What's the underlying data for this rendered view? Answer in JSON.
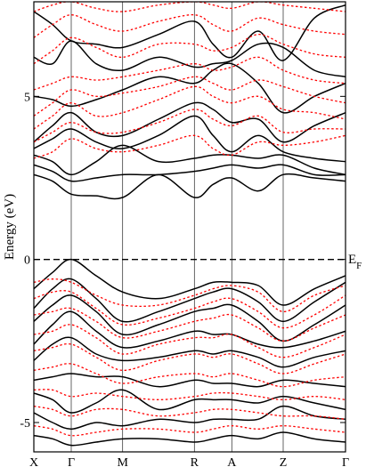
{
  "chart_data": {
    "type": "line",
    "title": "",
    "xlabel": "",
    "ylabel": "Energy (eV)",
    "ylim": [
      -5.9,
      7.9
    ],
    "yticks": [
      -5,
      0,
      5
    ],
    "kpoints": [
      {
        "label": "X",
        "x": 0.0
      },
      {
        "label": "Γ",
        "x": 0.12
      },
      {
        "label": "M",
        "x": 0.285
      },
      {
        "label": "R",
        "x": 0.515
      },
      {
        "label": "A",
        "x": 0.635
      },
      {
        "label": "Z",
        "x": 0.8
      },
      {
        "label": "Γ",
        "x": 1.0
      }
    ],
    "fermi": {
      "value": 0,
      "label_main": "E",
      "label_sub": "F"
    },
    "colors": {
      "solid": "#000000",
      "dashed": "#ff0000"
    },
    "series": [
      {
        "style": "solid",
        "x": [
          0,
          0.06,
          0.12,
          0.2,
          0.285,
          0.4,
          0.515,
          0.575,
          0.635,
          0.72,
          0.8,
          0.9,
          1.0
        ],
        "y": [
          2.6,
          2.4,
          2.0,
          1.95,
          1.9,
          2.6,
          1.9,
          2.3,
          2.5,
          2.1,
          2.6,
          2.5,
          2.4
        ]
      },
      {
        "style": "solid",
        "x": [
          0,
          0.06,
          0.12,
          0.2,
          0.285,
          0.4,
          0.515,
          0.575,
          0.635,
          0.72,
          0.8,
          0.9,
          1.0
        ],
        "y": [
          2.9,
          2.7,
          2.4,
          2.5,
          2.6,
          2.6,
          2.7,
          2.8,
          2.9,
          2.8,
          2.9,
          2.6,
          2.6
        ]
      },
      {
        "style": "solid",
        "x": [
          0,
          0.06,
          0.12,
          0.2,
          0.285,
          0.4,
          0.515,
          0.575,
          0.635,
          0.72,
          0.8,
          0.9,
          1.0
        ],
        "y": [
          3.2,
          3.0,
          2.6,
          3.0,
          3.5,
          3.0,
          3.1,
          3.2,
          3.2,
          3.1,
          3.2,
          2.8,
          2.6
        ]
      },
      {
        "style": "solid",
        "x": [
          0,
          0.06,
          0.12,
          0.2,
          0.285,
          0.4,
          0.515,
          0.575,
          0.635,
          0.72,
          0.8,
          0.9,
          1.0
        ],
        "y": [
          3.4,
          3.7,
          4.0,
          3.6,
          3.4,
          3.8,
          4.4,
          3.8,
          3.3,
          3.8,
          3.3,
          3.1,
          3.0
        ]
      },
      {
        "style": "solid",
        "x": [
          0,
          0.06,
          0.12,
          0.2,
          0.285,
          0.4,
          0.515,
          0.575,
          0.635,
          0.72,
          0.8,
          0.9,
          1.0
        ],
        "y": [
          3.6,
          4.1,
          4.5,
          3.9,
          3.8,
          4.3,
          4.8,
          4.6,
          4.2,
          4.3,
          3.6,
          4.1,
          4.5
        ]
      },
      {
        "style": "solid",
        "x": [
          0,
          0.06,
          0.12,
          0.2,
          0.285,
          0.4,
          0.515,
          0.575,
          0.635,
          0.72,
          0.8,
          0.9,
          1.0
        ],
        "y": [
          5.0,
          4.9,
          4.7,
          4.9,
          5.2,
          5.6,
          5.4,
          5.8,
          6.0,
          5.4,
          4.5,
          5.0,
          5.4
        ]
      },
      {
        "style": "solid",
        "x": [
          0,
          0.06,
          0.12,
          0.2,
          0.285,
          0.4,
          0.515,
          0.575,
          0.635,
          0.72,
          0.8,
          0.9,
          1.0
        ],
        "y": [
          6.2,
          6.0,
          6.7,
          6.0,
          5.8,
          6.2,
          5.9,
          6.0,
          6.1,
          6.6,
          6.5,
          5.8,
          5.6
        ]
      },
      {
        "style": "solid",
        "x": [
          0,
          0.06,
          0.12,
          0.2,
          0.285,
          0.4,
          0.515,
          0.575,
          0.635,
          0.72,
          0.8,
          0.9,
          1.0
        ],
        "y": [
          7.6,
          7.2,
          6.7,
          6.6,
          6.5,
          6.9,
          7.3,
          6.6,
          6.2,
          7.0,
          6.1,
          7.4,
          7.8
        ]
      },
      {
        "style": "dashed",
        "x": [
          0,
          0.06,
          0.12,
          0.2,
          0.285,
          0.4,
          0.515,
          0.575,
          0.635,
          0.72,
          0.8,
          0.9,
          1.0
        ],
        "y": [
          3.1,
          3.3,
          3.7,
          3.4,
          3.3,
          3.5,
          3.8,
          3.4,
          3.2,
          3.6,
          3.5,
          3.6,
          3.8
        ]
      },
      {
        "style": "dashed",
        "x": [
          0,
          0.06,
          0.12,
          0.2,
          0.285,
          0.4,
          0.515,
          0.575,
          0.635,
          0.72,
          0.8,
          0.9,
          1.0
        ],
        "y": [
          3.6,
          3.9,
          4.2,
          3.9,
          3.9,
          4.2,
          4.6,
          4.3,
          4.1,
          4.4,
          3.9,
          4.0,
          4.0
        ]
      },
      {
        "style": "dashed",
        "x": [
          0,
          0.06,
          0.12,
          0.2,
          0.285,
          0.4,
          0.515,
          0.575,
          0.635,
          0.72,
          0.8,
          0.9,
          1.0
        ],
        "y": [
          4.0,
          4.4,
          4.8,
          4.4,
          4.5,
          4.9,
          5.3,
          5.0,
          4.8,
          5.0,
          4.6,
          4.5,
          4.3
        ]
      },
      {
        "style": "dashed",
        "x": [
          0,
          0.06,
          0.12,
          0.2,
          0.285,
          0.4,
          0.515,
          0.575,
          0.635,
          0.72,
          0.8,
          0.9,
          1.0
        ],
        "y": [
          4.4,
          4.8,
          5.2,
          5.0,
          5.1,
          5.3,
          5.6,
          5.4,
          5.2,
          5.5,
          5.3,
          5.0,
          4.8
        ]
      },
      {
        "style": "dashed",
        "x": [
          0,
          0.06,
          0.12,
          0.2,
          0.285,
          0.4,
          0.515,
          0.575,
          0.635,
          0.72,
          0.8,
          0.9,
          1.0
        ],
        "y": [
          5.2,
          5.4,
          5.6,
          5.5,
          5.6,
          5.8,
          6.0,
          5.8,
          5.9,
          6.2,
          5.8,
          5.5,
          5.4
        ]
      },
      {
        "style": "dashed",
        "x": [
          0,
          0.06,
          0.12,
          0.2,
          0.285,
          0.4,
          0.515,
          0.575,
          0.635,
          0.72,
          0.8,
          0.9,
          1.0
        ],
        "y": [
          6.0,
          6.4,
          6.8,
          6.5,
          6.2,
          6.6,
          6.6,
          6.4,
          6.5,
          6.9,
          6.6,
          6.3,
          6.2
        ]
      },
      {
        "style": "dashed",
        "x": [
          0,
          0.06,
          0.12,
          0.2,
          0.285,
          0.4,
          0.515,
          0.575,
          0.635,
          0.72,
          0.8,
          0.9,
          1.0
        ],
        "y": [
          6.8,
          7.2,
          7.5,
          7.2,
          7.0,
          7.3,
          7.5,
          7.2,
          7.0,
          7.4,
          7.2,
          7.0,
          6.9
        ]
      },
      {
        "style": "dashed",
        "x": [
          0,
          0.06,
          0.12,
          0.2,
          0.285,
          0.4,
          0.515,
          0.575,
          0.635,
          0.72,
          0.8,
          0.9,
          1.0
        ],
        "y": [
          7.6,
          7.8,
          7.9,
          7.7,
          7.6,
          7.8,
          7.9,
          7.8,
          7.7,
          7.9,
          7.8,
          7.7,
          7.6
        ]
      },
      {
        "style": "solid",
        "x": [
          0,
          0.06,
          0.12,
          0.2,
          0.285,
          0.4,
          0.515,
          0.575,
          0.635,
          0.72,
          0.8,
          0.9,
          1.0
        ],
        "y": [
          -0.9,
          -0.4,
          0.0,
          -0.5,
          -1.0,
          -1.2,
          -0.9,
          -0.7,
          -0.7,
          -0.8,
          -1.4,
          -0.9,
          -0.5
        ]
      },
      {
        "style": "solid",
        "x": [
          0,
          0.06,
          0.12,
          0.2,
          0.285,
          0.4,
          0.515,
          0.575,
          0.635,
          0.72,
          0.8,
          0.9,
          1.0
        ],
        "y": [
          -1.5,
          -0.9,
          -0.6,
          -1.2,
          -1.9,
          -1.6,
          -1.2,
          -1.0,
          -0.9,
          -1.3,
          -1.9,
          -1.3,
          -0.7
        ]
      },
      {
        "style": "solid",
        "x": [
          0,
          0.06,
          0.12,
          0.2,
          0.285,
          0.4,
          0.515,
          0.575,
          0.635,
          0.72,
          0.8,
          0.9,
          1.0
        ],
        "y": [
          -1.9,
          -1.4,
          -1.1,
          -1.6,
          -2.3,
          -2.0,
          -1.6,
          -1.5,
          -1.4,
          -1.9,
          -2.5,
          -2.0,
          -1.4
        ]
      },
      {
        "style": "solid",
        "x": [
          0,
          0.06,
          0.12,
          0.2,
          0.285,
          0.4,
          0.515,
          0.575,
          0.635,
          0.72,
          0.8,
          0.9,
          1.0
        ],
        "y": [
          -2.6,
          -2.0,
          -1.6,
          -2.2,
          -2.7,
          -2.5,
          -2.2,
          -2.3,
          -2.3,
          -2.6,
          -2.7,
          -2.5,
          -2.2
        ]
      },
      {
        "style": "solid",
        "x": [
          0,
          0.06,
          0.12,
          0.2,
          0.285,
          0.4,
          0.515,
          0.575,
          0.635,
          0.72,
          0.8,
          0.9,
          1.0
        ],
        "y": [
          -3.1,
          -2.6,
          -2.4,
          -2.9,
          -3.1,
          -3.0,
          -2.8,
          -2.9,
          -2.8,
          -3.0,
          -3.3,
          -3.0,
          -2.8
        ]
      },
      {
        "style": "solid",
        "x": [
          0,
          0.06,
          0.12,
          0.2,
          0.285,
          0.4,
          0.515,
          0.575,
          0.635,
          0.72,
          0.8,
          0.9,
          1.0
        ],
        "y": [
          -3.7,
          -3.6,
          -3.5,
          -3.6,
          -3.6,
          -3.9,
          -3.7,
          -3.8,
          -3.8,
          -3.9,
          -3.7,
          -3.8,
          -3.9
        ]
      },
      {
        "style": "solid",
        "x": [
          0,
          0.06,
          0.12,
          0.2,
          0.285,
          0.4,
          0.515,
          0.575,
          0.635,
          0.72,
          0.8,
          0.9,
          1.0
        ],
        "y": [
          -4.1,
          -4.3,
          -4.7,
          -4.4,
          -4.0,
          -4.6,
          -4.3,
          -4.3,
          -4.3,
          -4.4,
          -4.2,
          -4.4,
          -4.6
        ]
      },
      {
        "style": "solid",
        "x": [
          0,
          0.06,
          0.12,
          0.2,
          0.285,
          0.4,
          0.515,
          0.575,
          0.635,
          0.72,
          0.8,
          0.9,
          1.0
        ],
        "y": [
          -4.7,
          -5.0,
          -5.2,
          -5.0,
          -5.1,
          -4.9,
          -5.0,
          -4.9,
          -4.9,
          -4.9,
          -4.5,
          -4.8,
          -4.9
        ]
      },
      {
        "style": "solid",
        "x": [
          0,
          0.06,
          0.12,
          0.2,
          0.285,
          0.4,
          0.515,
          0.575,
          0.635,
          0.72,
          0.8,
          0.9,
          1.0
        ],
        "y": [
          -5.4,
          -5.5,
          -5.7,
          -5.6,
          -5.5,
          -5.5,
          -5.6,
          -5.5,
          -5.4,
          -5.5,
          -5.3,
          -5.5,
          -5.6
        ]
      },
      {
        "style": "dashed",
        "x": [
          0,
          0.06,
          0.12,
          0.2,
          0.285,
          0.4,
          0.515,
          0.575,
          0.635,
          0.72,
          0.8,
          0.9,
          1.0
        ],
        "y": [
          -0.7,
          -0.6,
          -0.7,
          -1.1,
          -1.4,
          -1.4,
          -1.1,
          -0.9,
          -0.8,
          -1.0,
          -1.6,
          -1.1,
          -0.8
        ]
      },
      {
        "style": "dashed",
        "x": [
          0,
          0.06,
          0.12,
          0.2,
          0.285,
          0.4,
          0.515,
          0.575,
          0.635,
          0.72,
          0.8,
          0.9,
          1.0
        ],
        "y": [
          -1.2,
          -1.0,
          -1.0,
          -1.5,
          -2.0,
          -1.8,
          -1.5,
          -1.3,
          -1.2,
          -1.6,
          -2.1,
          -1.7,
          -1.1
        ]
      },
      {
        "style": "dashed",
        "x": [
          0,
          0.06,
          0.12,
          0.2,
          0.285,
          0.4,
          0.515,
          0.575,
          0.635,
          0.72,
          0.8,
          0.9,
          1.0
        ],
        "y": [
          -1.7,
          -1.6,
          -1.5,
          -1.9,
          -2.4,
          -2.2,
          -1.9,
          -1.8,
          -1.7,
          -2.1,
          -2.5,
          -2.1,
          -1.7
        ]
      },
      {
        "style": "dashed",
        "x": [
          0,
          0.06,
          0.12,
          0.2,
          0.285,
          0.4,
          0.515,
          0.575,
          0.635,
          0.72,
          0.8,
          0.9,
          1.0
        ],
        "y": [
          -2.3,
          -2.2,
          -2.0,
          -2.4,
          -2.9,
          -2.6,
          -2.4,
          -2.4,
          -2.3,
          -2.7,
          -3.0,
          -2.7,
          -2.3
        ]
      },
      {
        "style": "dashed",
        "x": [
          0,
          0.06,
          0.12,
          0.2,
          0.285,
          0.4,
          0.515,
          0.575,
          0.635,
          0.72,
          0.8,
          0.9,
          1.0
        ],
        "y": [
          -2.8,
          -2.7,
          -2.6,
          -3.0,
          -3.4,
          -3.1,
          -2.9,
          -3.0,
          -2.9,
          -3.2,
          -3.5,
          -3.2,
          -2.9
        ]
      },
      {
        "style": "dashed",
        "x": [
          0,
          0.06,
          0.12,
          0.2,
          0.285,
          0.4,
          0.515,
          0.575,
          0.635,
          0.72,
          0.8,
          0.9,
          1.0
        ],
        "y": [
          -3.4,
          -3.3,
          -3.2,
          -3.5,
          -3.8,
          -3.6,
          -3.5,
          -3.6,
          -3.5,
          -3.7,
          -3.9,
          -3.7,
          -3.6
        ]
      },
      {
        "style": "dashed",
        "x": [
          0,
          0.06,
          0.12,
          0.2,
          0.285,
          0.4,
          0.515,
          0.575,
          0.635,
          0.72,
          0.8,
          0.9,
          1.0
        ],
        "y": [
          -4.0,
          -4.0,
          -4.2,
          -4.1,
          -4.2,
          -4.3,
          -4.2,
          -4.1,
          -4.1,
          -4.2,
          -4.3,
          -4.2,
          -4.3
        ]
      },
      {
        "style": "dashed",
        "x": [
          0,
          0.06,
          0.12,
          0.2,
          0.285,
          0.4,
          0.515,
          0.575,
          0.635,
          0.72,
          0.8,
          0.9,
          1.0
        ],
        "y": [
          -4.5,
          -4.6,
          -4.8,
          -4.6,
          -4.6,
          -4.8,
          -4.7,
          -4.6,
          -4.6,
          -4.7,
          -4.8,
          -4.8,
          -4.9
        ]
      },
      {
        "style": "dashed",
        "x": [
          0,
          0.06,
          0.12,
          0.2,
          0.285,
          0.4,
          0.515,
          0.575,
          0.635,
          0.72,
          0.8,
          0.9,
          1.0
        ],
        "y": [
          -5.1,
          -5.2,
          -5.4,
          -5.3,
          -5.2,
          -5.2,
          -5.3,
          -5.2,
          -5.1,
          -5.2,
          -5.1,
          -5.2,
          -5.3
        ]
      }
    ]
  }
}
